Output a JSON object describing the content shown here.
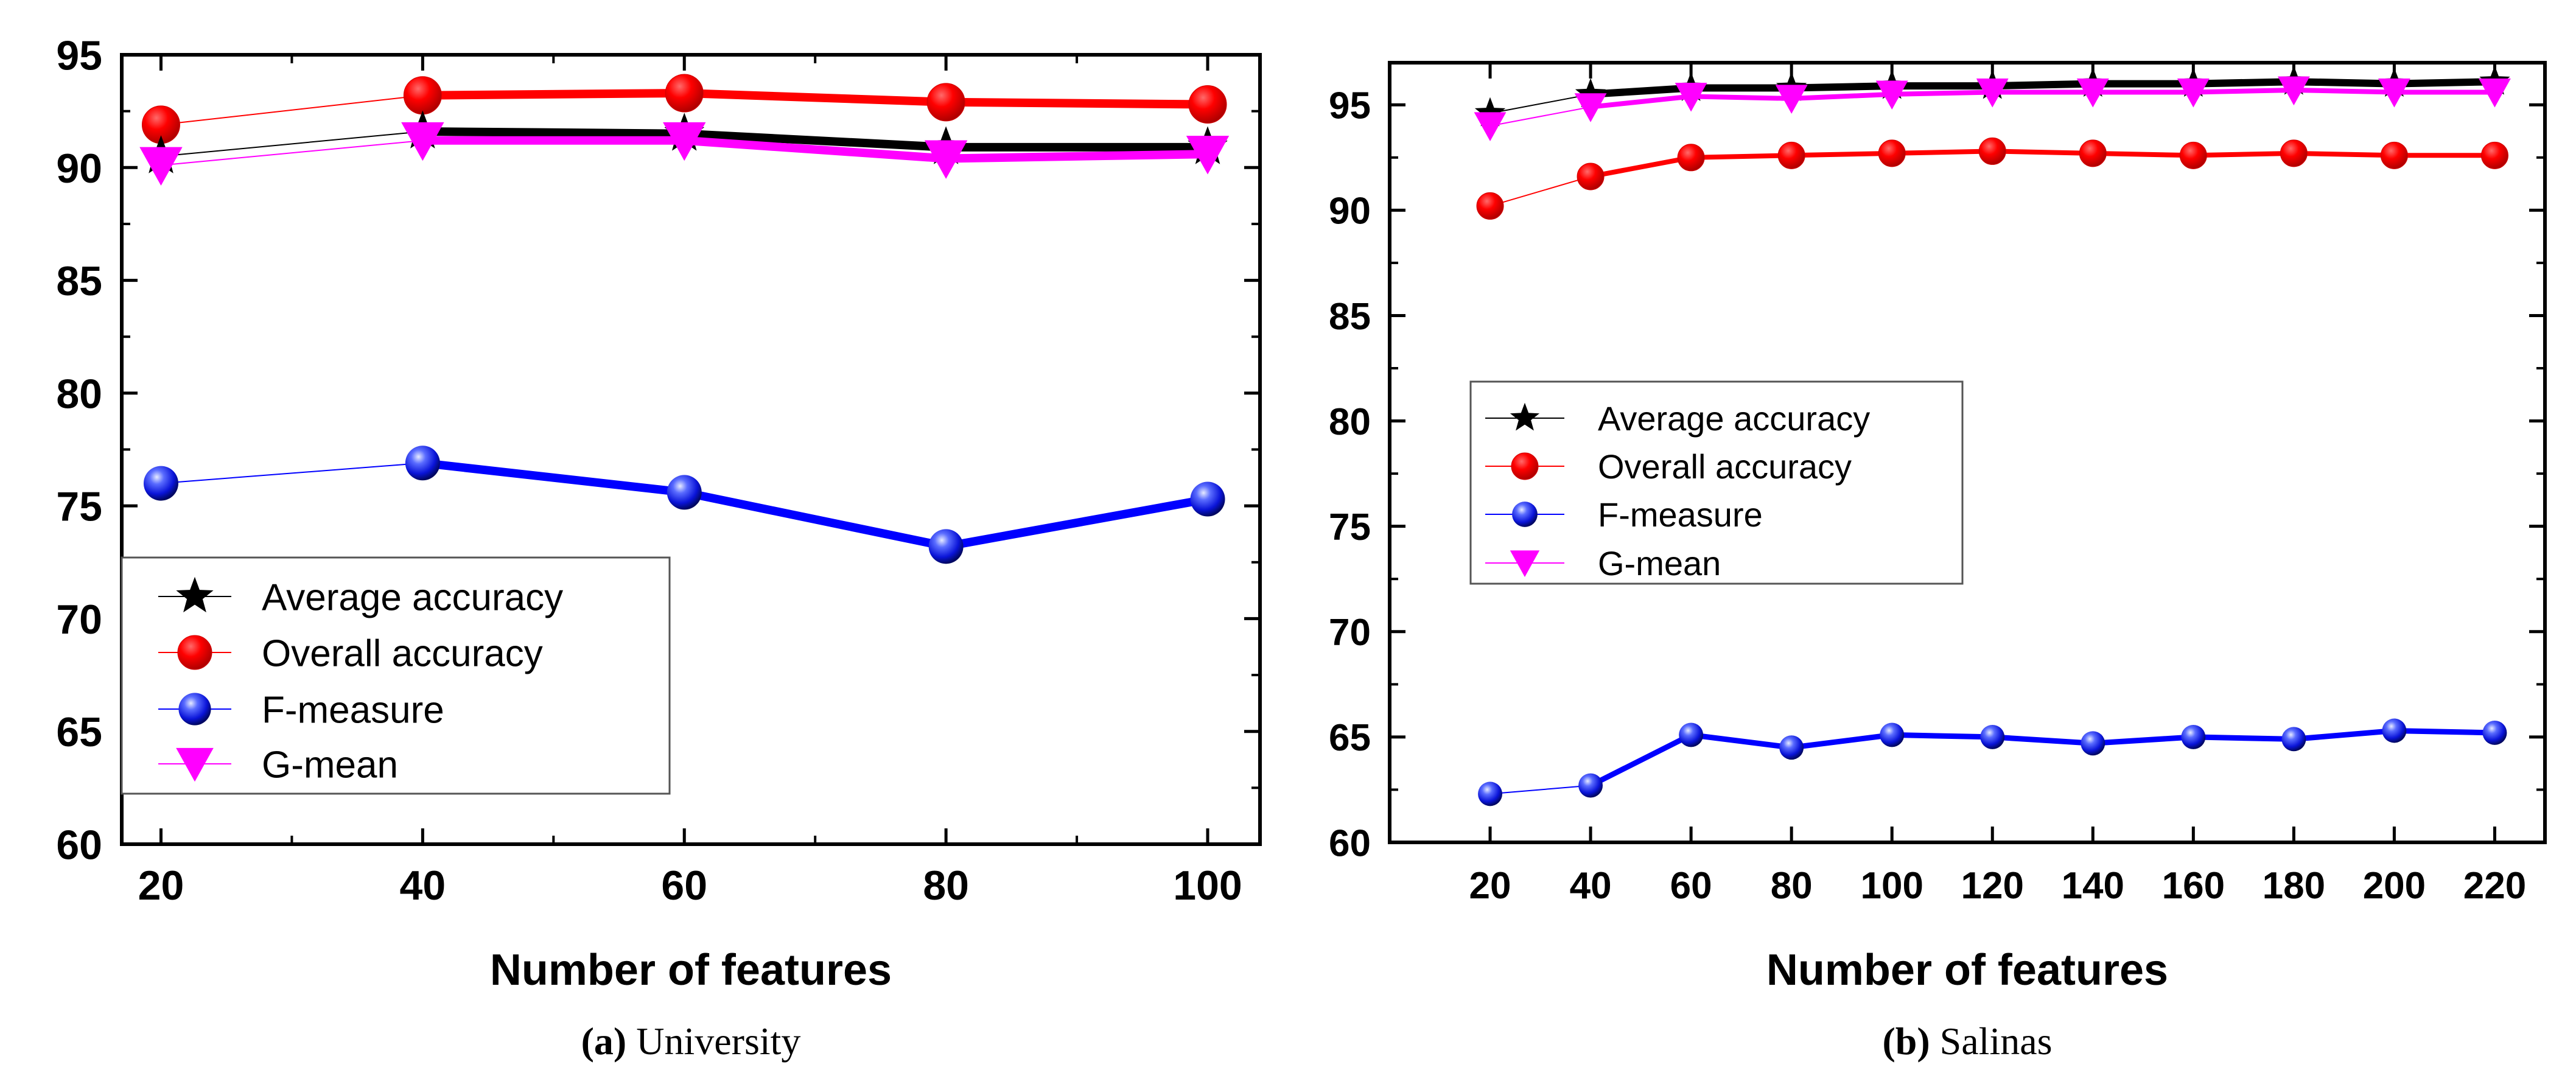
{
  "figure": {
    "captions": [
      {
        "letter": "(a)",
        "text": "University"
      },
      {
        "letter": "(b)",
        "text": "Salinas"
      }
    ]
  },
  "styles": {
    "colors": {
      "Average accuracy": "#000000",
      "Overall accuracy": "#ff0000",
      "F-measure": "#0000ff",
      "G-mean": "#ff00ff"
    },
    "markers": {
      "Average accuracy": "star",
      "Overall accuracy": "circle",
      "F-measure": "sphere",
      "G-mean": "triangle-down"
    }
  },
  "chart_data": [
    {
      "type": "line",
      "title": "",
      "caption": "University",
      "xlabel": "Number of features",
      "ylabel": "",
      "xlim": [
        17,
        104
      ],
      "ylim": [
        60,
        95
      ],
      "xticks": [
        "20",
        "40",
        "60",
        "80",
        "100"
      ],
      "yticks": [
        "60",
        "65",
        "70",
        "75",
        "80",
        "85",
        "90",
        "95"
      ],
      "legend_position": "lower-left",
      "x": [
        20,
        40,
        60,
        80,
        100
      ],
      "series": [
        {
          "name": "Average accuracy",
          "values": [
            90.5,
            91.6,
            91.5,
            90.9,
            90.9
          ]
        },
        {
          "name": "Overall accuracy",
          "values": [
            91.9,
            93.2,
            93.3,
            92.9,
            92.8
          ]
        },
        {
          "name": "F-measure",
          "values": [
            76.0,
            76.9,
            75.6,
            73.2,
            75.3
          ]
        },
        {
          "name": "G-mean",
          "values": [
            90.1,
            91.2,
            91.2,
            90.4,
            90.6
          ]
        }
      ]
    },
    {
      "type": "line",
      "title": "",
      "caption": "Salinas",
      "xlabel": "Number of features",
      "ylabel": "",
      "xlim": [
        0,
        230
      ],
      "ylim": [
        60,
        97
      ],
      "xticks": [
        "20",
        "40",
        "60",
        "80",
        "100",
        "120",
        "140",
        "160",
        "180",
        "200",
        "220"
      ],
      "yticks": [
        "60",
        "65",
        "70",
        "75",
        "80",
        "85",
        "90",
        "95"
      ],
      "legend_position": "center-left",
      "x": [
        20,
        40,
        60,
        80,
        100,
        120,
        140,
        160,
        180,
        200,
        220
      ],
      "series": [
        {
          "name": "Average accuracy",
          "values": [
            94.6,
            95.5,
            95.8,
            95.8,
            95.9,
            95.9,
            96.0,
            96.0,
            96.1,
            96.0,
            96.1
          ]
        },
        {
          "name": "Overall accuracy",
          "values": [
            90.2,
            91.6,
            92.5,
            92.6,
            92.7,
            92.8,
            92.7,
            92.6,
            92.7,
            92.6,
            92.6
          ]
        },
        {
          "name": "F-measure",
          "values": [
            62.3,
            62.7,
            65.1,
            64.5,
            65.1,
            65.0,
            64.7,
            65.0,
            64.9,
            65.3,
            65.2
          ]
        },
        {
          "name": "G-mean",
          "values": [
            94.0,
            94.9,
            95.4,
            95.3,
            95.5,
            95.6,
            95.6,
            95.6,
            95.7,
            95.6,
            95.6
          ]
        }
      ]
    }
  ]
}
